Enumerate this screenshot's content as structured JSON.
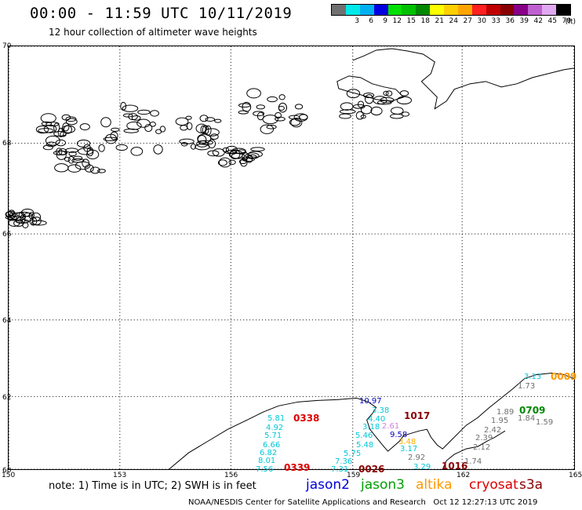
{
  "title": "00:00 - 11:59 UTC 10/11/2019",
  "subtitle": "12 hour collection of altimeter wave heights",
  "scale": {
    "colors": [
      "#707070",
      "#00e8e8",
      "#00b0f0",
      "#0000e0",
      "#00e000",
      "#00c000",
      "#008800",
      "#ffff00",
      "#ffd000",
      "#ffa500",
      "#ff2020",
      "#c00000",
      "#880000",
      "#880088",
      "#c060d0",
      "#e0a8f0",
      "#000000"
    ],
    "labels": [
      "3",
      "6",
      "9",
      "12",
      "15",
      "18",
      "21",
      "24",
      "27",
      "30",
      "33",
      "36",
      "39",
      "42",
      "45",
      "70"
    ],
    "unit": "(ft)"
  },
  "map": {
    "lat_labels": [
      "70",
      "68",
      "66",
      "64",
      "62",
      "60"
    ],
    "lon_labels": [
      "150",
      "153",
      "156",
      "159",
      "162",
      "165"
    ]
  },
  "observations": [
    {
      "text": "5.81",
      "color": "#00c8d8"
    },
    {
      "text": "4.92",
      "color": "#00c8d8"
    },
    {
      "text": "5.71",
      "color": "#00c8d8"
    },
    {
      "text": "6.66",
      "color": "#00c8d8"
    },
    {
      "text": "6.82",
      "color": "#00c8d8"
    },
    {
      "text": "8.01",
      "color": "#00c8d8"
    },
    {
      "text": "7.56",
      "color": "#00c8d8"
    },
    {
      "text": "10.97",
      "color": "#0000c0"
    },
    {
      "text": "3.38",
      "color": "#00c8d8"
    },
    {
      "text": "4.40",
      "color": "#00c8d8"
    },
    {
      "text": "3.18",
      "color": "#00c8d8"
    },
    {
      "text": "5.46",
      "color": "#00c8d8"
    },
    {
      "text": "5.48",
      "color": "#00c8d8"
    },
    {
      "text": "5.75",
      "color": "#00c8d8"
    },
    {
      "text": "7.36",
      "color": "#00c8d8"
    },
    {
      "text": "7.31",
      "color": "#00c8d8"
    },
    {
      "text": "9.58",
      "color": "#0000c0"
    },
    {
      "text": "2.61",
      "color": "#d080e0"
    },
    {
      "text": "3.17",
      "color": "#00c8d8"
    },
    {
      "text": "3.29",
      "color": "#00c8d8"
    },
    {
      "text": "2.92",
      "color": "#707070"
    },
    {
      "text": "1.74",
      "color": "#707070"
    },
    {
      "text": "3.13",
      "color": "#00c8d8"
    },
    {
      "text": "1.73",
      "color": "#707070"
    },
    {
      "text": "1.95",
      "color": "#707070"
    },
    {
      "text": "2.42",
      "color": "#707070"
    },
    {
      "text": "2.39",
      "color": "#707070"
    },
    {
      "text": "2.12",
      "color": "#707070"
    },
    {
      "text": "1.84",
      "color": "#707070"
    },
    {
      "text": "1.59",
      "color": "#707070"
    },
    {
      "text": "1.89",
      "color": "#707070"
    },
    {
      "text": "3.48",
      "color": "#ffb000"
    }
  ],
  "track_times": [
    {
      "text": "0338",
      "color": "#dd0000"
    },
    {
      "text": "0339",
      "color": "#dd0000"
    },
    {
      "text": "1017",
      "color": "#880000"
    },
    {
      "text": "0026",
      "color": "#880000"
    },
    {
      "text": "1016",
      "color": "#880000"
    },
    {
      "text": "0709",
      "color": "#008800"
    },
    {
      "text": "0009",
      "color": "#ff9900"
    }
  ],
  "note": "note: 1) Time is in UTC; 2) SWH is in feet",
  "satellites": [
    {
      "name": "jason2",
      "color": "#0000dd"
    },
    {
      "name": "jason3",
      "color": "#00a000"
    },
    {
      "name": "altika",
      "color": "#ff9900"
    },
    {
      "name": "cryosat",
      "color": "#dd0000"
    },
    {
      "name": "s3a",
      "color": "#880000"
    }
  ],
  "footer": "NOAA/NESDIS Center for Satellite Applications and Research   Oct 12 12:27:13 UTC 2019"
}
